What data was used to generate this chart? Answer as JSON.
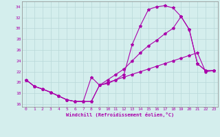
{
  "xlabel": "Windchill (Refroidissement éolien,°C)",
  "xlim": [
    -0.5,
    23.5
  ],
  "ylim": [
    15.5,
    35.0
  ],
  "xticks": [
    0,
    1,
    2,
    3,
    4,
    5,
    6,
    7,
    8,
    9,
    10,
    11,
    12,
    13,
    14,
    15,
    16,
    17,
    18,
    19,
    20,
    21,
    22,
    23
  ],
  "yticks": [
    16,
    18,
    20,
    22,
    24,
    26,
    28,
    30,
    32,
    34
  ],
  "bg_color": "#d4eeed",
  "line_color": "#aa00aa",
  "grid_color": "#b8d8d8",
  "curve1_x": [
    0,
    1,
    2,
    3,
    4,
    5,
    6,
    7,
    8,
    9,
    10,
    11,
    12,
    13,
    14,
    15,
    16,
    17,
    18,
    19,
    20,
    21,
    22,
    23
  ],
  "curve1_y": [
    20.5,
    19.3,
    18.8,
    18.2,
    17.5,
    16.8,
    16.5,
    16.5,
    21.0,
    19.5,
    19.8,
    20.5,
    21.5,
    27.0,
    30.5,
    33.5,
    34.0,
    34.2,
    33.8,
    32.2,
    29.8,
    23.5,
    22.2,
    22.2
  ],
  "curve2_x": [
    0,
    1,
    2,
    3,
    4,
    5,
    6,
    7,
    8,
    9,
    10,
    11,
    12,
    13,
    14,
    15,
    16,
    17,
    18,
    19,
    20,
    21,
    22,
    23
  ],
  "curve2_y": [
    20.5,
    19.3,
    18.8,
    18.2,
    17.5,
    16.8,
    16.5,
    16.5,
    16.5,
    19.5,
    20.5,
    21.5,
    22.5,
    24.0,
    25.5,
    26.8,
    27.8,
    29.0,
    30.0,
    32.2,
    29.8,
    23.5,
    22.2,
    22.2
  ],
  "curve3_x": [
    0,
    1,
    2,
    3,
    4,
    5,
    6,
    7,
    8,
    9,
    10,
    11,
    12,
    13,
    14,
    15,
    16,
    17,
    18,
    19,
    20,
    21,
    22,
    23
  ],
  "curve3_y": [
    20.5,
    19.3,
    18.8,
    18.2,
    17.5,
    16.8,
    16.5,
    16.5,
    16.5,
    19.5,
    20.0,
    20.5,
    21.0,
    21.5,
    22.0,
    22.5,
    23.0,
    23.5,
    24.0,
    24.5,
    25.0,
    25.5,
    22.0,
    22.2
  ]
}
